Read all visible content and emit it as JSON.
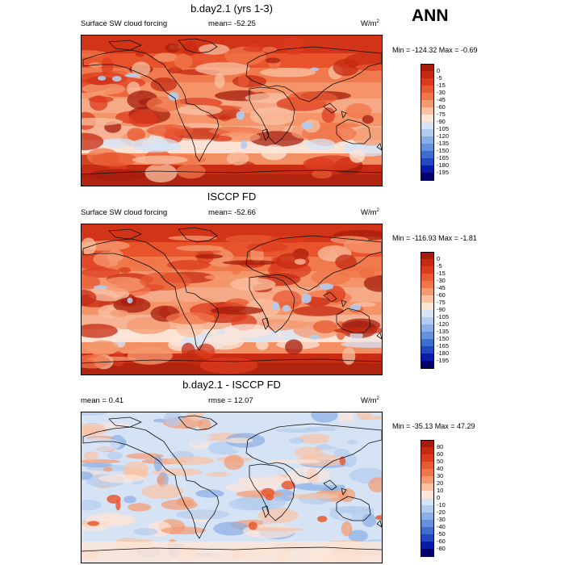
{
  "header": {
    "season": "ANN"
  },
  "panels": [
    {
      "title": "b.day2.1 (yrs 1-3)",
      "left_label": "Surface SW cloud forcing",
      "center_label": "mean= -52.25",
      "units_main": "W/m",
      "units_sup": "2",
      "minmax": "Min = -124.32 Max =  -0.69",
      "colorbar": {
        "labels": [
          "0",
          "-5",
          "-15",
          "-30",
          "-45",
          "-60",
          "-75",
          "-90",
          "-105",
          "-120",
          "-135",
          "-150",
          "-165",
          "-180",
          "-195"
        ],
        "colors": [
          "#a51c0c",
          "#c62a12",
          "#dc3b1e",
          "#e85a31",
          "#f0764a",
          "#f59a70",
          "#f9c2a3",
          "#fde6d8",
          "#d5e3f5",
          "#b3ccee",
          "#8aaee6",
          "#6690dc",
          "#3e6ed0",
          "#2247c0",
          "#0a1aa8",
          "#03006e"
        ]
      }
    },
    {
      "title": "ISCCP FD",
      "left_label": "Surface SW cloud forcing",
      "center_label": "mean= -52.66",
      "units_main": "W/m",
      "units_sup": "2",
      "minmax": "Min = -116.93 Max =  -1.81",
      "colorbar": {
        "labels": [
          "0",
          "-5",
          "-15",
          "-30",
          "-45",
          "-60",
          "-75",
          "-90",
          "-105",
          "-120",
          "-135",
          "-150",
          "-165",
          "-180",
          "-195"
        ],
        "colors": [
          "#a51c0c",
          "#c62a12",
          "#dc3b1e",
          "#e85a31",
          "#f0764a",
          "#f59a70",
          "#f9c2a3",
          "#fde6d8",
          "#d5e3f5",
          "#b3ccee",
          "#8aaee6",
          "#6690dc",
          "#3e6ed0",
          "#2247c0",
          "#0a1aa8",
          "#03006e"
        ]
      }
    },
    {
      "title": "b.day2.1 - ISCCP FD",
      "left_label": "mean =   0.41",
      "center_label": "rmse =  12.07",
      "units_main": "W/m",
      "units_sup": "2",
      "minmax": "Min = -35.13 Max =  47.29",
      "colorbar": {
        "labels": [
          "80",
          "60",
          "50",
          "40",
          "30",
          "20",
          "10",
          "0",
          "-10",
          "-20",
          "-30",
          "-40",
          "-50",
          "-60",
          "-80"
        ],
        "colors": [
          "#a51c0c",
          "#c62a12",
          "#dc3b1e",
          "#e85a31",
          "#f0764a",
          "#f59a70",
          "#f9c2a3",
          "#fde6d8",
          "#d5e3f5",
          "#b3ccee",
          "#8aaee6",
          "#6690dc",
          "#3e6ed0",
          "#2247c0",
          "#0a1aa8",
          "#03006e"
        ]
      }
    }
  ]
}
